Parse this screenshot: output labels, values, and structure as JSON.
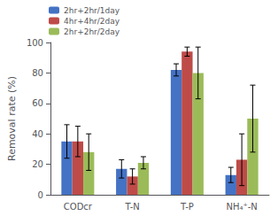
{
  "chart_data": {
    "type": "bar",
    "categories": [
      "CODcr",
      "T-N",
      "T-P",
      "NH₄⁺-N"
    ],
    "series": [
      {
        "name": "2hr+2hr/1day",
        "color": "#4472C4",
        "values": [
          35,
          17,
          82,
          13
        ],
        "errors": [
          11,
          6,
          4,
          5
        ]
      },
      {
        "name": "4hr+4hr/2day",
        "color": "#BE4B48",
        "values": [
          35,
          12,
          94,
          23
        ],
        "errors": [
          10,
          5,
          3,
          17
        ]
      },
      {
        "name": "2hr+2hr/2day",
        "color": "#9BBB59",
        "values": [
          28,
          21,
          80,
          50
        ],
        "errors": [
          12,
          4,
          17,
          22
        ]
      }
    ],
    "ylabel": "Removal rate (%)",
    "ylim": [
      0,
      100
    ],
    "yticks": [
      0,
      20,
      40,
      60,
      80,
      100
    ],
    "grid": false,
    "legend": "upper left"
  }
}
